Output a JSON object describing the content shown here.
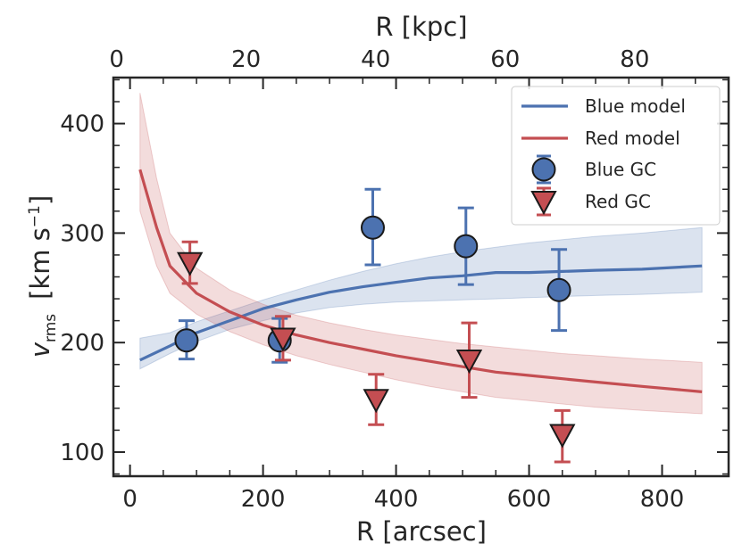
{
  "chart_data": {
    "type": "line",
    "title": "",
    "xlabel": "R  [arcsec]",
    "ylabel": "v_rms  [km s^-1]",
    "ylabel_parts": {
      "v": "v",
      "sub": "rms",
      "unit_open": "[km s",
      "sup": "−1",
      "unit_close": "]"
    },
    "top_xlabel": "R  [kpc]",
    "xlim": [
      -25,
      900
    ],
    "ylim": [
      78,
      442
    ],
    "top_xlim": [
      -0.5,
      94.5
    ],
    "x_ticks": [
      0,
      200,
      400,
      600,
      800
    ],
    "y_ticks": [
      100,
      200,
      300,
      400
    ],
    "top_x_ticks": [
      0,
      20,
      40,
      60,
      80
    ],
    "x_tick_labels": [
      "0",
      "200",
      "400",
      "600",
      "800"
    ],
    "y_tick_labels": [
      "100",
      "200",
      "300",
      "400"
    ],
    "top_x_tick_labels": [
      "0",
      "20",
      "40",
      "60",
      "80"
    ],
    "legend_position": "top-right",
    "colors": {
      "blue": "#4c72b0",
      "red": "#c44e52",
      "axis": "#262626"
    },
    "series": [
      {
        "name": "Blue model",
        "kind": "line",
        "color": "#4c72b0",
        "x": [
          15,
          60,
          100,
          150,
          200,
          250,
          300,
          350,
          400,
          450,
          500,
          550,
          600,
          650,
          700,
          770,
          860
        ],
        "values": [
          184,
          197,
          209,
          220,
          231,
          239,
          246,
          251,
          255,
          259,
          261,
          264,
          264,
          265,
          266,
          267,
          270
        ],
        "band_lower": [
          176,
          190,
          201,
          212,
          220,
          227,
          232,
          235,
          237,
          238,
          239,
          240,
          241,
          242,
          243,
          244,
          246
        ],
        "band_upper": [
          204,
          209,
          219,
          229,
          239,
          248,
          257,
          265,
          272,
          278,
          283,
          287,
          291,
          294,
          297,
          300,
          305
        ]
      },
      {
        "name": "Red model",
        "kind": "line",
        "color": "#c44e52",
        "x": [
          15,
          40,
          60,
          100,
          150,
          200,
          250,
          300,
          350,
          400,
          450,
          500,
          550,
          600,
          650,
          700,
          770,
          860
        ],
        "values": [
          358,
          305,
          270,
          245,
          228,
          216,
          207,
          200,
          194,
          188,
          183,
          178,
          173,
          170,
          167,
          164,
          160,
          155
        ],
        "band_lower": [
          320,
          270,
          245,
          226,
          210,
          198,
          188,
          180,
          173,
          166,
          160,
          155,
          150,
          147,
          144,
          141,
          138,
          135
        ],
        "band_upper": [
          428,
          350,
          300,
          268,
          248,
          235,
          225,
          218,
          212,
          207,
          203,
          199,
          196,
          193,
          190,
          188,
          185,
          182
        ]
      },
      {
        "name": "Blue GC",
        "kind": "errorbar",
        "marker": "circle",
        "color": "#4c72b0",
        "x": [
          85,
          225,
          365,
          505,
          645
        ],
        "values": [
          202,
          202,
          305,
          288,
          248
        ],
        "err_low": [
          17,
          20,
          34,
          35,
          37
        ],
        "err_high": [
          18,
          20,
          35,
          35,
          37
        ]
      },
      {
        "name": "Red GC",
        "kind": "errorbar",
        "marker": "triangle-down",
        "color": "#c44e52",
        "x": [
          90,
          230,
          370,
          510,
          650
        ],
        "values": [
          273,
          204,
          148,
          184,
          116
        ],
        "err_low": [
          19,
          20,
          23,
          34,
          25
        ],
        "err_high": [
          19,
          20,
          23,
          34,
          22
        ]
      }
    ]
  }
}
